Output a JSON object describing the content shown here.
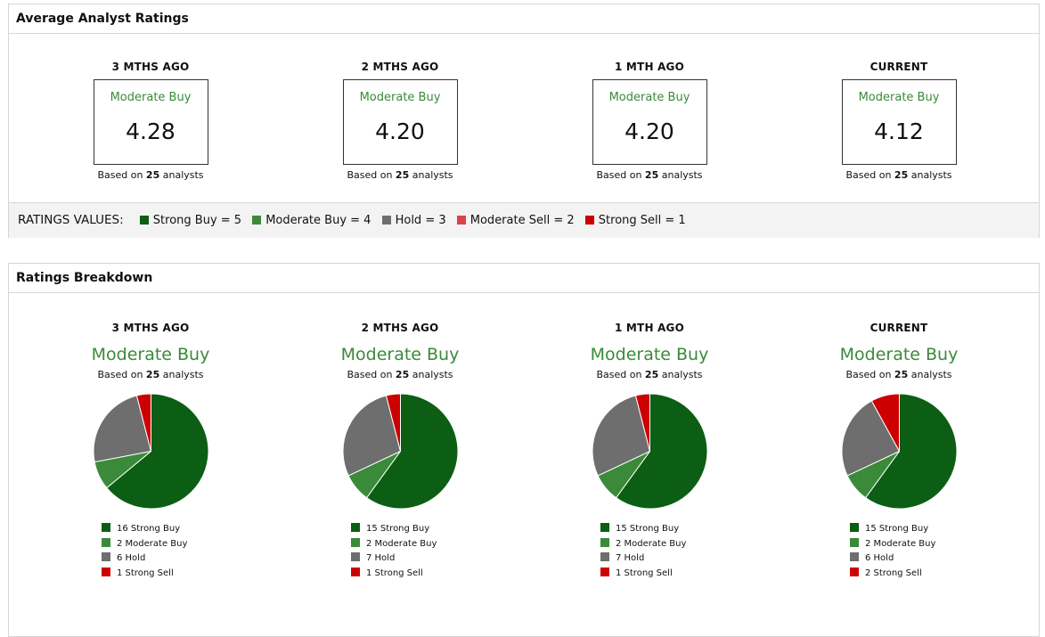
{
  "average_panel": {
    "title": "Average Analyst Ratings",
    "periods": [
      {
        "label": "3 MTHS AGO",
        "rating": "Moderate Buy",
        "value": "4.28",
        "based_prefix": "Based on",
        "analysts": "25",
        "based_suffix": "analysts"
      },
      {
        "label": "2 MTHS AGO",
        "rating": "Moderate Buy",
        "value": "4.20",
        "based_prefix": "Based on",
        "analysts": "25",
        "based_suffix": "analysts"
      },
      {
        "label": "1 MTH AGO",
        "rating": "Moderate Buy",
        "value": "4.20",
        "based_prefix": "Based on",
        "analysts": "25",
        "based_suffix": "analysts"
      },
      {
        "label": "CURRENT",
        "rating": "Moderate Buy",
        "value": "4.12",
        "based_prefix": "Based on",
        "analysts": "25",
        "based_suffix": "analysts"
      }
    ],
    "ratings_values": {
      "title": "RATINGS VALUES:",
      "items": [
        {
          "label": "Strong Buy = 5",
          "color": "#0b5e14"
        },
        {
          "label": "Moderate Buy = 4",
          "color": "#3a8a3a"
        },
        {
          "label": "Hold = 3",
          "color": "#6e6e6e"
        },
        {
          "label": "Moderate Sell = 2",
          "color": "#d9434a"
        },
        {
          "label": "Strong Sell = 1",
          "color": "#cc0000"
        }
      ]
    }
  },
  "breakdown_panel": {
    "title": "Ratings Breakdown",
    "periods": [
      {
        "label": "3 MTHS AGO",
        "rating": "Moderate Buy",
        "based_prefix": "Based on",
        "analysts": "25",
        "based_suffix": "analysts",
        "legend": [
          "16 Strong Buy",
          "2 Moderate Buy",
          "6 Hold",
          "1 Strong Sell"
        ]
      },
      {
        "label": "2 MTHS AGO",
        "rating": "Moderate Buy",
        "based_prefix": "Based on",
        "analysts": "25",
        "based_suffix": "analysts",
        "legend": [
          "15 Strong Buy",
          "2 Moderate Buy",
          "7 Hold",
          "1 Strong Sell"
        ]
      },
      {
        "label": "1 MTH AGO",
        "rating": "Moderate Buy",
        "based_prefix": "Based on",
        "analysts": "25",
        "based_suffix": "analysts",
        "legend": [
          "15 Strong Buy",
          "2 Moderate Buy",
          "7 Hold",
          "1 Strong Sell"
        ]
      },
      {
        "label": "CURRENT",
        "rating": "Moderate Buy",
        "based_prefix": "Based on",
        "analysts": "25",
        "based_suffix": "analysts",
        "legend": [
          "15 Strong Buy",
          "2 Moderate Buy",
          "6 Hold",
          "2 Strong Sell"
        ]
      }
    ]
  },
  "chart_data": [
    {
      "type": "pie",
      "categories": [
        "Strong Buy",
        "Moderate Buy",
        "Hold",
        "Strong Sell"
      ],
      "values": [
        16,
        2,
        6,
        1
      ],
      "colors": [
        "#0b5e14",
        "#3a8a3a",
        "#6e6e6e",
        "#cc0000"
      ]
    },
    {
      "type": "pie",
      "categories": [
        "Strong Buy",
        "Moderate Buy",
        "Hold",
        "Strong Sell"
      ],
      "values": [
        15,
        2,
        7,
        1
      ],
      "colors": [
        "#0b5e14",
        "#3a8a3a",
        "#6e6e6e",
        "#cc0000"
      ]
    },
    {
      "type": "pie",
      "categories": [
        "Strong Buy",
        "Moderate Buy",
        "Hold",
        "Strong Sell"
      ],
      "values": [
        15,
        2,
        7,
        1
      ],
      "colors": [
        "#0b5e14",
        "#3a8a3a",
        "#6e6e6e",
        "#cc0000"
      ]
    },
    {
      "type": "pie",
      "categories": [
        "Strong Buy",
        "Moderate Buy",
        "Hold",
        "Strong Sell"
      ],
      "values": [
        15,
        2,
        6,
        2
      ],
      "colors": [
        "#0b5e14",
        "#3a8a3a",
        "#6e6e6e",
        "#cc0000"
      ]
    }
  ]
}
